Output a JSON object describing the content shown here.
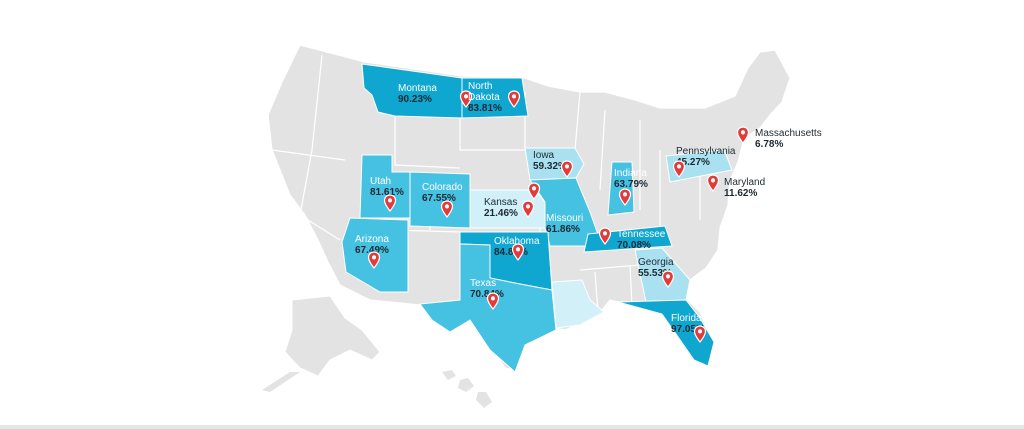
{
  "colors": {
    "base": "#e3e3e3",
    "border": "#ffffff",
    "dark": "#0fa6d0",
    "medium": "#45c1e2",
    "light": "#a9e1f0",
    "pale": "#d2f0f8",
    "pin": "#e23b3b"
  },
  "states": [
    {
      "key": "montana",
      "name": "Montana",
      "value": "90.23%",
      "shade": "dark",
      "lines": [
        "Montana"
      ]
    },
    {
      "key": "north-dakota",
      "name": "North Dakota",
      "value": "83.81%",
      "shade": "dark",
      "lines": [
        "North",
        "Dakota"
      ]
    },
    {
      "key": "iowa",
      "name": "Iowa",
      "value": "59.32%",
      "shade": "light",
      "lines": [
        "Iowa"
      ]
    },
    {
      "key": "utah",
      "name": "Utah",
      "value": "81.61%",
      "shade": "medium",
      "lines": [
        "Utah"
      ]
    },
    {
      "key": "colorado",
      "name": "Colorado",
      "value": "67.55%",
      "shade": "medium",
      "lines": [
        "Colorado"
      ]
    },
    {
      "key": "kansas",
      "name": "Kansas",
      "value": "21.46%",
      "shade": "pale",
      "lines": [
        "Kansas"
      ]
    },
    {
      "key": "missouri",
      "name": "Missouri",
      "value": "61.86%",
      "shade": "medium",
      "lines": [
        "Missouri"
      ]
    },
    {
      "key": "indiana",
      "name": "Indiana",
      "value": "63.79%",
      "shade": "medium",
      "lines": [
        "Indiana"
      ]
    },
    {
      "key": "pennsylvania",
      "name": "Pennsylvania",
      "value": "45.27%",
      "shade": "light",
      "lines": [
        "Pennsylvania"
      ]
    },
    {
      "key": "massachusetts",
      "name": "Massachusetts",
      "value": "6.78%",
      "shade": "base",
      "lines": [
        "Massachusetts"
      ]
    },
    {
      "key": "maryland",
      "name": "Maryland",
      "value": "11.62%",
      "shade": "base",
      "lines": [
        "Maryland"
      ]
    },
    {
      "key": "arizona",
      "name": "Arizona",
      "value": "67.49%",
      "shade": "medium",
      "lines": [
        "Arizona"
      ]
    },
    {
      "key": "oklahoma",
      "name": "Oklahoma",
      "value": "84.85%",
      "shade": "dark",
      "lines": [
        "Oklahoma"
      ]
    },
    {
      "key": "tennessee",
      "name": "Tennessee",
      "value": "70.08%",
      "shade": "dark",
      "lines": [
        "Tennessee"
      ]
    },
    {
      "key": "texas",
      "name": "Texas",
      "value": "70.84%",
      "shade": "medium",
      "lines": [
        "Texas"
      ]
    },
    {
      "key": "georgia",
      "name": "Georgia",
      "value": "55.53%",
      "shade": "light",
      "lines": [
        "Georgia"
      ]
    },
    {
      "key": "florida",
      "name": "Florida",
      "value": "97.05%",
      "shade": "dark",
      "lines": [
        "Florida"
      ]
    },
    {
      "key": "louisiana",
      "name": "",
      "value": "",
      "shade": "pale",
      "lines": []
    }
  ]
}
